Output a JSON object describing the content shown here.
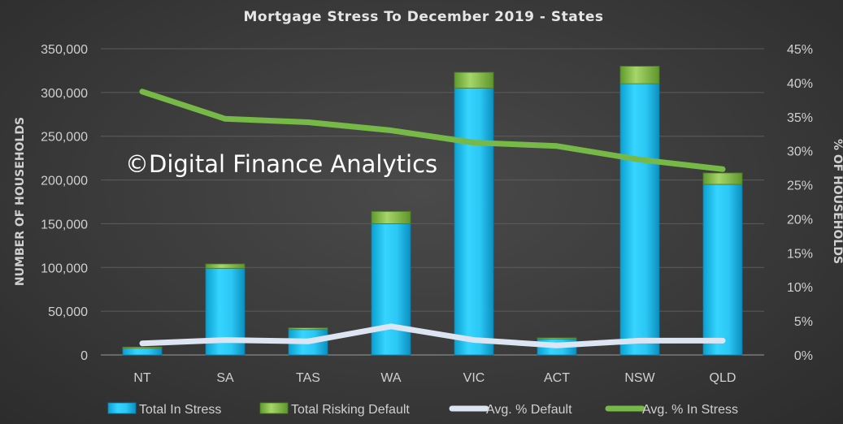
{
  "chart_data": {
    "type": "bar",
    "title": "Mortgage Stress To December 2019 - States",
    "watermark": "©Digital Finance Analytics",
    "categories": [
      "NT",
      "SA",
      "TAS",
      "WA",
      "VIC",
      "ACT",
      "NSW",
      "QLD"
    ],
    "ylabel": "NUMBER OF HOUSEHOLDS",
    "y2label": "% OF HOUSEHOLDS",
    "ylim": [
      0,
      350000
    ],
    "y2lim": [
      0,
      0.45
    ],
    "y_ticks": [
      "0",
      "50,000",
      "100,000",
      "150,000",
      "200,000",
      "250,000",
      "300,000",
      "350,000"
    ],
    "y2_ticks": [
      "0%",
      "5%",
      "10%",
      "15%",
      "20%",
      "25%",
      "30%",
      "35%",
      "40%",
      "45%"
    ],
    "grid": true,
    "legend_position": "bottom",
    "stacked": true,
    "series": [
      {
        "name": "Total In Stress",
        "kind": "bar",
        "axis": "left",
        "color": "#1ec4f0",
        "values": [
          8000,
          99000,
          29000,
          150000,
          305000,
          18000,
          310000,
          195000
        ]
      },
      {
        "name": "Total Risking Default",
        "kind": "bar",
        "axis": "left",
        "color": "#8bc34a",
        "values": [
          1000,
          5000,
          2000,
          14000,
          18000,
          1500,
          20000,
          13000
        ]
      },
      {
        "name": "Avg. % Default",
        "kind": "line",
        "axis": "right",
        "color": "#dde4f2",
        "values": [
          0.017,
          0.022,
          0.02,
          0.042,
          0.022,
          0.014,
          0.021,
          0.021
        ]
      },
      {
        "name": "Avg. % In Stress",
        "kind": "line",
        "axis": "right",
        "color": "#76b947",
        "values": [
          0.387,
          0.347,
          0.342,
          0.33,
          0.312,
          0.307,
          0.287,
          0.273
        ]
      }
    ]
  }
}
